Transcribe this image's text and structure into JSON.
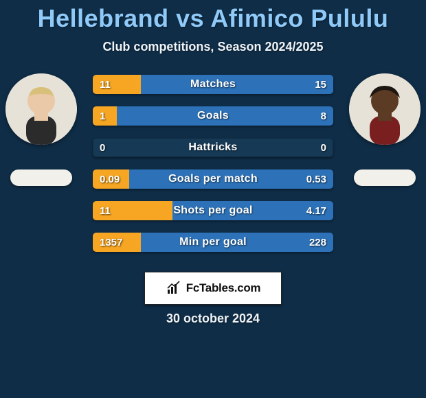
{
  "title": "Hellebrand vs Afimico Pululu",
  "subtitle": "Club competitions, Season 2024/2025",
  "date": "30 october 2024",
  "brand": "FcTables.com",
  "colors": {
    "background": "#0f2d47",
    "title": "#90caf9",
    "bar_left": "#f6a623",
    "bar_right": "#2d72b8",
    "bar_track": "#163a56"
  },
  "players": {
    "left": {
      "name": "Hellebrand"
    },
    "right": {
      "name": "Afimico Pululu"
    }
  },
  "stats": [
    {
      "label": "Matches",
      "left_text": "11",
      "right_text": "15",
      "left_pct": 20,
      "right_pct": 80
    },
    {
      "label": "Goals",
      "left_text": "1",
      "right_text": "8",
      "left_pct": 10,
      "right_pct": 90
    },
    {
      "label": "Hattricks",
      "left_text": "0",
      "right_text": "0",
      "left_pct": 0,
      "right_pct": 0
    },
    {
      "label": "Goals per match",
      "left_text": "0.09",
      "right_text": "0.53",
      "left_pct": 15,
      "right_pct": 85
    },
    {
      "label": "Shots per goal",
      "left_text": "11",
      "right_text": "4.17",
      "left_pct": 33,
      "right_pct": 67
    },
    {
      "label": "Min per goal",
      "left_text": "1357",
      "right_text": "228",
      "left_pct": 20,
      "right_pct": 80
    }
  ]
}
